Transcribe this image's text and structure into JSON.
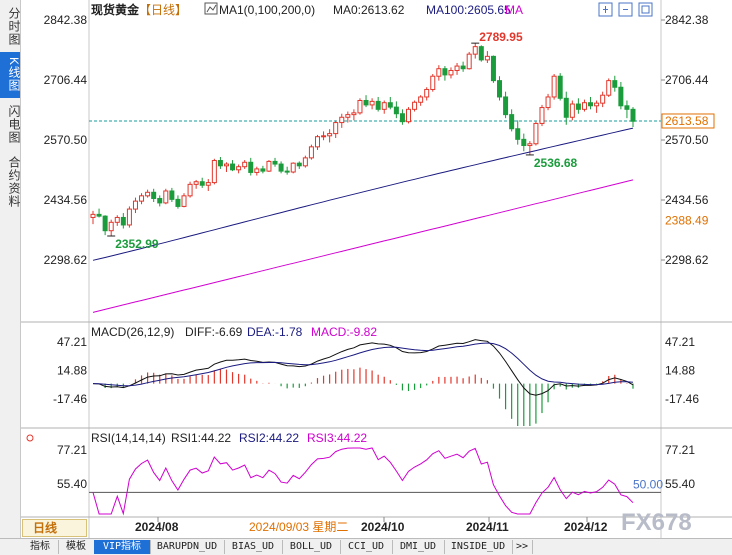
{
  "sidebar": {
    "tabs": [
      {
        "label": "分时图",
        "active": false
      },
      {
        "label": "K线图",
        "active": true
      },
      {
        "label": "闪电图",
        "active": false
      },
      {
        "label": "合约资料",
        "active": false
      }
    ]
  },
  "header": {
    "instrument": "现货黄金",
    "period": "【日线】",
    "ma_label": "MA1(0,100,200,0)",
    "ma0": "MA0:2613.62",
    "ma100": "MA100:2605.65",
    "ma_extra": "MA"
  },
  "price_axis": {
    "ticks": [
      "2842.38",
      "2706.44",
      "2570.50",
      "2434.56",
      "2298.62"
    ],
    "current_price": "2613.58",
    "ma200_value": "2388.49"
  },
  "annotations": {
    "high": "2789.95",
    "low_mid": "2536.68",
    "low_start": "2352.99"
  },
  "macd_panel": {
    "title": "MACD(26,12,9)",
    "diff": "DIFF:-6.69",
    "dea": "DEA:-1.78",
    "macd": "MACD:-9.82",
    "ticks": [
      "47.21",
      "14.88",
      "-17.46"
    ]
  },
  "rsi_panel": {
    "title": "RSI(14,14,14)",
    "rsi1": "RSI1:44.22",
    "rsi2": "RSI2:44.22",
    "rsi3": "RSI3:44.22",
    "ticks": [
      "77.21",
      "55.40"
    ],
    "level_label": "50.00"
  },
  "x_axis": {
    "labels": [
      "2024/08",
      "2024/10",
      "2024/11",
      "2024/12"
    ],
    "cursor_date": "2024/09/03 星期二"
  },
  "period_selector": "日线",
  "toolbar": {
    "tabs": [
      {
        "label": "指标",
        "active": false,
        "w": 36
      },
      {
        "label": "模板",
        "active": false,
        "w": 36
      },
      {
        "label": "VIP指标",
        "active": true,
        "w": 56
      },
      {
        "label": "BARUPDN_UD",
        "active": false,
        "w": 74
      },
      {
        "label": "BIAS_UD",
        "active": false,
        "w": 58
      },
      {
        "label": "BOLL_UD",
        "active": false,
        "w": 58
      },
      {
        "label": "CCI_UD",
        "active": false,
        "w": 52
      },
      {
        "label": "DMI_UD",
        "active": false,
        "w": 52
      },
      {
        "label": "INSIDE_UD",
        "active": false,
        "w": 68
      },
      {
        "label": ">>",
        "active": false,
        "w": 20
      }
    ]
  },
  "watermark": "FX678",
  "colors": {
    "up": "#e2372c",
    "down": "#1b9c3c",
    "ma100": "#1a1a80",
    "ma200": "#d000d0",
    "diff": "#111111",
    "dea": "#1a1a80",
    "rsi": "#d000d0",
    "macd_label": "#d000d0"
  },
  "chart_data": {
    "type": "candlestick",
    "dates_approx": "2024-07 to 2024-12 daily",
    "price_range": [
      2298.62,
      2842.38
    ],
    "candles": [
      [
        2395,
        2410,
        2380,
        2402
      ],
      [
        2402,
        2415,
        2395,
        2398
      ],
      [
        2398,
        2400,
        2355,
        2365
      ],
      [
        2365,
        2390,
        2353,
        2384
      ],
      [
        2384,
        2400,
        2376,
        2395
      ],
      [
        2395,
        2405,
        2370,
        2378
      ],
      [
        2378,
        2420,
        2372,
        2414
      ],
      [
        2414,
        2440,
        2405,
        2432
      ],
      [
        2432,
        2450,
        2425,
        2444
      ],
      [
        2444,
        2458,
        2440,
        2452
      ],
      [
        2452,
        2460,
        2430,
        2438
      ],
      [
        2438,
        2445,
        2420,
        2428
      ],
      [
        2428,
        2460,
        2425,
        2455
      ],
      [
        2455,
        2462,
        2430,
        2436
      ],
      [
        2436,
        2445,
        2415,
        2420
      ],
      [
        2420,
        2450,
        2418,
        2444
      ],
      [
        2444,
        2476,
        2440,
        2470
      ],
      [
        2470,
        2480,
        2460,
        2476
      ],
      [
        2476,
        2485,
        2462,
        2468
      ],
      [
        2468,
        2482,
        2455,
        2474
      ],
      [
        2474,
        2528,
        2470,
        2524
      ],
      [
        2524,
        2532,
        2505,
        2512
      ],
      [
        2512,
        2520,
        2498,
        2516
      ],
      [
        2516,
        2525,
        2500,
        2503
      ],
      [
        2503,
        2515,
        2495,
        2510
      ],
      [
        2510,
        2525,
        2505,
        2520
      ],
      [
        2520,
        2530,
        2490,
        2497
      ],
      [
        2497,
        2510,
        2490,
        2505
      ],
      [
        2505,
        2512,
        2495,
        2500
      ],
      [
        2500,
        2525,
        2498,
        2522
      ],
      [
        2522,
        2530,
        2510,
        2516
      ],
      [
        2516,
        2522,
        2495,
        2500
      ],
      [
        2500,
        2510,
        2492,
        2498
      ],
      [
        2498,
        2520,
        2495,
        2518
      ],
      [
        2518,
        2522,
        2505,
        2512
      ],
      [
        2512,
        2535,
        2508,
        2530
      ],
      [
        2530,
        2560,
        2526,
        2555
      ],
      [
        2555,
        2582,
        2548,
        2578
      ],
      [
        2578,
        2590,
        2570,
        2580
      ],
      [
        2580,
        2595,
        2565,
        2585
      ],
      [
        2585,
        2615,
        2575,
        2610
      ],
      [
        2610,
        2630,
        2598,
        2622
      ],
      [
        2622,
        2635,
        2610,
        2628
      ],
      [
        2628,
        2640,
        2615,
        2632
      ],
      [
        2632,
        2665,
        2628,
        2660
      ],
      [
        2660,
        2672,
        2645,
        2650
      ],
      [
        2650,
        2665,
        2640,
        2658
      ],
      [
        2658,
        2668,
        2635,
        2640
      ],
      [
        2640,
        2660,
        2630,
        2655
      ],
      [
        2655,
        2668,
        2640,
        2645
      ],
      [
        2645,
        2658,
        2620,
        2630
      ],
      [
        2630,
        2640,
        2605,
        2612
      ],
      [
        2612,
        2645,
        2608,
        2640
      ],
      [
        2640,
        2660,
        2635,
        2656
      ],
      [
        2656,
        2672,
        2648,
        2668
      ],
      [
        2668,
        2690,
        2660,
        2685
      ],
      [
        2685,
        2720,
        2680,
        2715
      ],
      [
        2715,
        2740,
        2705,
        2732
      ],
      [
        2732,
        2738,
        2705,
        2718
      ],
      [
        2718,
        2735,
        2710,
        2728
      ],
      [
        2728,
        2745,
        2718,
        2738
      ],
      [
        2738,
        2748,
        2725,
        2732
      ],
      [
        2732,
        2770,
        2730,
        2765
      ],
      [
        2765,
        2790,
        2755,
        2782
      ],
      [
        2782,
        2785,
        2748,
        2752
      ],
      [
        2752,
        2772,
        2745,
        2760
      ],
      [
        2760,
        2762,
        2700,
        2705
      ],
      [
        2705,
        2715,
        2660,
        2668
      ],
      [
        2668,
        2680,
        2620,
        2628
      ],
      [
        2628,
        2640,
        2590,
        2596
      ],
      [
        2596,
        2615,
        2560,
        2572
      ],
      [
        2572,
        2585,
        2545,
        2558
      ],
      [
        2558,
        2568,
        2537,
        2562
      ],
      [
        2562,
        2612,
        2558,
        2608
      ],
      [
        2608,
        2650,
        2602,
        2644
      ],
      [
        2644,
        2675,
        2638,
        2668
      ],
      [
        2668,
        2720,
        2662,
        2715
      ],
      [
        2715,
        2722,
        2660,
        2665
      ],
      [
        2665,
        2680,
        2605,
        2622
      ],
      [
        2622,
        2660,
        2615,
        2652
      ],
      [
        2652,
        2665,
        2630,
        2640
      ],
      [
        2640,
        2662,
        2635,
        2655
      ],
      [
        2655,
        2668,
        2640,
        2648
      ],
      [
        2648,
        2660,
        2632,
        2654
      ],
      [
        2654,
        2680,
        2645,
        2672
      ],
      [
        2672,
        2710,
        2668,
        2705
      ],
      [
        2705,
        2716,
        2680,
        2690
      ],
      [
        2690,
        2702,
        2640,
        2648
      ],
      [
        2648,
        2660,
        2620,
        2640
      ],
      [
        2640,
        2645,
        2600,
        2613
      ]
    ],
    "ma100_values_endpoints": [
      2298,
      2605
    ],
    "ma200_values_endpoints": [
      2180,
      2480
    ],
    "macd_range": [
      -33,
      60
    ],
    "rsi_range": [
      35,
      85
    ]
  }
}
